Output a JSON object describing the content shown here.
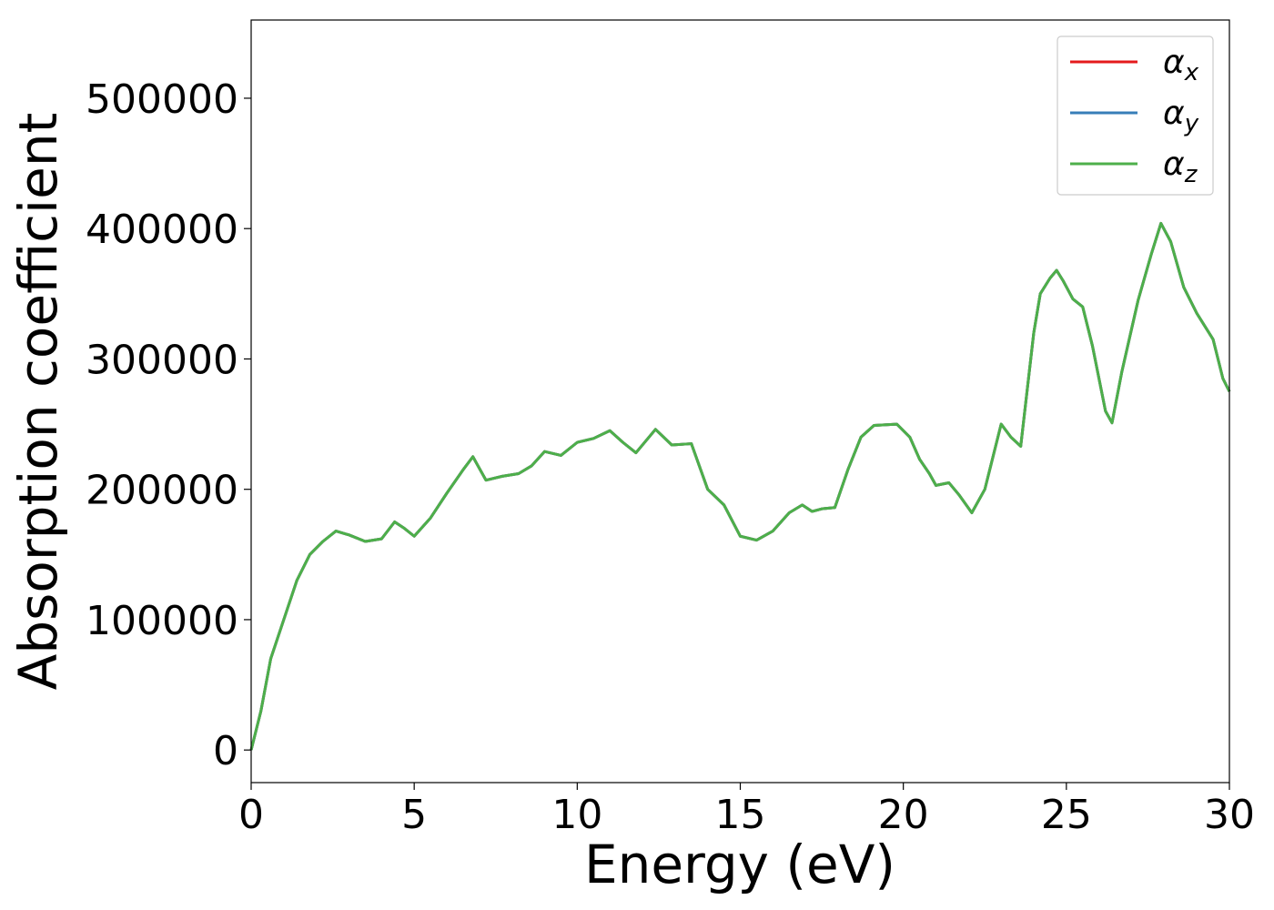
{
  "chart_data": {
    "type": "line",
    "title": "",
    "xlabel": "Energy (eV)",
    "ylabel": "Absorption coefficient",
    "xlim": [
      0,
      30
    ],
    "ylim": [
      -25000,
      560000
    ],
    "xticks": [
      0,
      5,
      10,
      15,
      20,
      25,
      30
    ],
    "yticks": [
      0,
      100000,
      200000,
      300000,
      400000,
      500000
    ],
    "grid": false,
    "legend_position": "top-right",
    "series": [
      {
        "name_base": "α",
        "name_sub": "x",
        "color": "#e41a1c"
      },
      {
        "name_base": "α",
        "name_sub": "y",
        "color": "#377eb8"
      },
      {
        "name_base": "α",
        "name_sub": "z",
        "color": "#4daf4a"
      }
    ],
    "x": [
      0,
      0.3,
      0.6,
      1.0,
      1.4,
      1.8,
      2.2,
      2.6,
      3.0,
      3.5,
      4.0,
      4.4,
      4.7,
      5.0,
      5.5,
      6.0,
      6.5,
      6.8,
      7.2,
      7.7,
      8.2,
      8.6,
      9.0,
      9.5,
      10.0,
      10.5,
      11.0,
      11.4,
      11.8,
      12.4,
      12.9,
      13.5,
      14.0,
      14.5,
      15.0,
      15.5,
      16.0,
      16.5,
      16.9,
      17.2,
      17.5,
      17.9,
      18.3,
      18.7,
      19.1,
      19.8,
      20.2,
      20.5,
      20.8,
      21.0,
      21.4,
      21.7,
      22.1,
      22.5,
      23.0,
      23.3,
      23.6,
      24.0,
      24.2,
      24.5,
      24.7,
      24.9,
      25.2,
      25.5,
      25.8,
      26.2,
      26.4,
      26.7,
      27.2,
      27.6,
      27.9,
      28.2,
      28.6,
      29.0,
      29.5,
      29.8,
      30.0
    ],
    "values": [
      0,
      30000,
      70000,
      100000,
      130000,
      150000,
      160000,
      168000,
      165000,
      160000,
      162000,
      175000,
      170000,
      164000,
      178000,
      197000,
      215000,
      225000,
      207000,
      210000,
      212000,
      218000,
      229000,
      226000,
      236000,
      239000,
      245000,
      236000,
      228000,
      246000,
      234000,
      235000,
      200000,
      188000,
      164000,
      161000,
      168000,
      182000,
      188000,
      183000,
      185000,
      186000,
      215000,
      240000,
      249000,
      250000,
      240000,
      223000,
      212000,
      203000,
      205000,
      196000,
      182000,
      200000,
      250000,
      240000,
      233000,
      320000,
      350000,
      362000,
      368000,
      360000,
      346000,
      340000,
      310000,
      260000,
      251000,
      290000,
      345000,
      380000,
      404000,
      390000,
      355000,
      335000,
      315000,
      285000,
      275000
    ]
  }
}
